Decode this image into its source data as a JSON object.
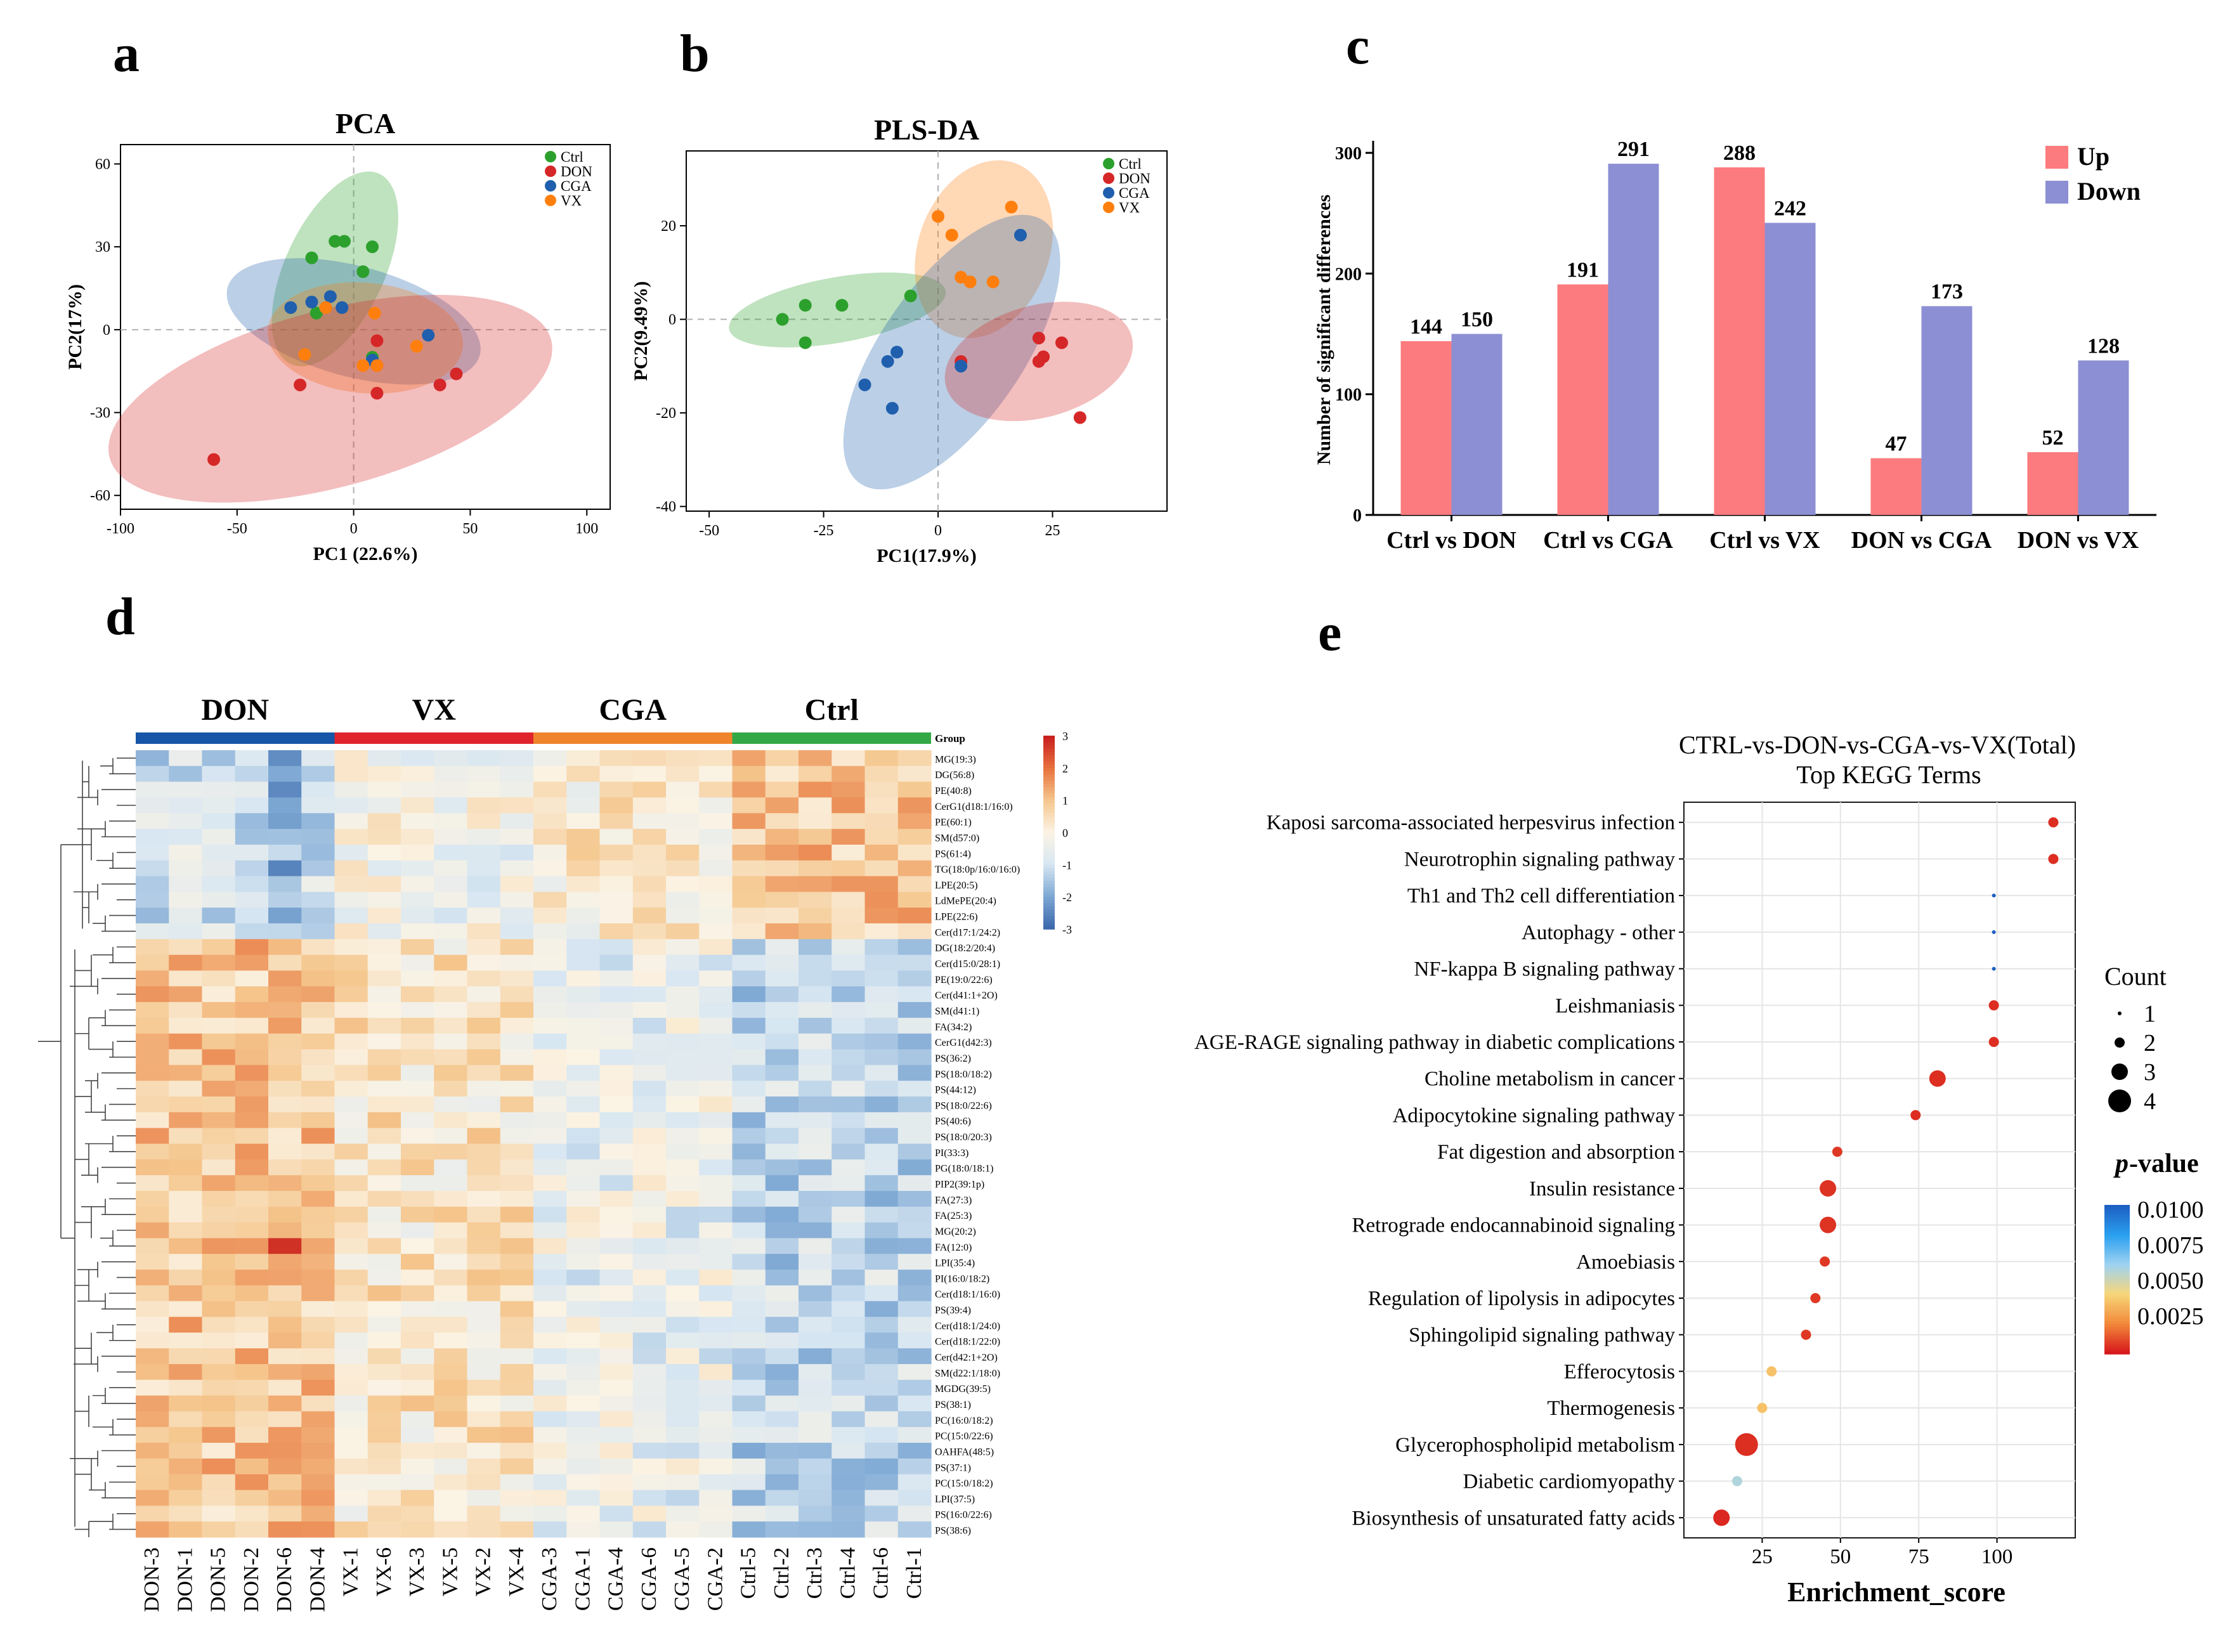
{
  "panel_letters": [
    "a",
    "b",
    "c",
    "d",
    "e"
  ],
  "chart_data": [
    {
      "id": "a",
      "type": "scatter",
      "title": "PCA",
      "xlabel": "PC1 (22.6%)",
      "ylabel": "PC2(17%)",
      "xlim": [
        -100,
        110
      ],
      "ylim": [
        -65,
        67
      ],
      "xticks": [
        -100,
        -50,
        0,
        50,
        100
      ],
      "yticks": [
        -60,
        -30,
        0,
        30,
        60
      ],
      "legend": [
        "Ctrl",
        "DON",
        "CGA",
        "VX"
      ],
      "series": [
        {
          "name": "Ctrl",
          "color": "#2ca02c",
          "points": [
            [
              -8,
              32
            ],
            [
              -4,
              32
            ],
            [
              -18,
              26
            ],
            [
              4,
              21
            ],
            [
              8,
              30
            ],
            [
              -16,
              6
            ],
            [
              8,
              -10
            ]
          ]
        },
        {
          "name": "DON",
          "color": "#d62728",
          "points": [
            [
              -60,
              -47
            ],
            [
              -23,
              -20
            ],
            [
              10,
              -23
            ],
            [
              37,
              -20
            ],
            [
              44,
              -16
            ],
            [
              10,
              -4
            ],
            [
              10,
              -13
            ]
          ]
        },
        {
          "name": "CGA",
          "color": "#1f5fad",
          "points": [
            [
              -27,
              8
            ],
            [
              -10,
              12
            ],
            [
              -5,
              8
            ],
            [
              -18,
              10
            ],
            [
              32,
              -2
            ],
            [
              8,
              -11
            ]
          ]
        },
        {
          "name": "VX",
          "color": "#ff7f0e",
          "points": [
            [
              -21,
              -9
            ],
            [
              9,
              6
            ],
            [
              4,
              -13
            ],
            [
              27,
              -6
            ],
            [
              -12,
              8
            ],
            [
              10,
              -13
            ]
          ]
        }
      ],
      "ellipses": [
        {
          "group": "Ctrl",
          "cx": -8,
          "cy": 22,
          "rx": 45,
          "ry": 18,
          "rotate": -65
        },
        {
          "group": "CGA",
          "cx": 0,
          "cy": 3,
          "rx": 56,
          "ry": 20,
          "rotate": 15
        },
        {
          "group": "VX",
          "cx": 5,
          "cy": -3,
          "rx": 42,
          "ry": 20,
          "rotate": 5
        },
        {
          "group": "DON",
          "cx": -10,
          "cy": -25,
          "rx": 98,
          "ry": 32,
          "rotate": -15
        }
      ]
    },
    {
      "id": "b",
      "type": "scatter",
      "title": "PLS-DA",
      "xlabel": "PC1(17.9%)",
      "ylabel": "PC2(9.49%)",
      "xlim": [
        -55,
        50
      ],
      "ylim": [
        -41,
        36
      ],
      "xticks": [
        -50,
        -25,
        0,
        25
      ],
      "yticks": [
        -40,
        -20,
        0,
        20
      ],
      "legend": [
        "Ctrl",
        "DON",
        "CGA",
        "VX"
      ],
      "series": [
        {
          "name": "Ctrl",
          "color": "#2ca02c",
          "points": [
            [
              -34,
              0
            ],
            [
              -29,
              3
            ],
            [
              -21,
              3
            ],
            [
              -29,
              -5
            ],
            [
              -6,
              5
            ]
          ]
        },
        {
          "name": "DON",
          "color": "#d62728",
          "points": [
            [
              5,
              -9
            ],
            [
              22,
              -4
            ],
            [
              22,
              -9
            ],
            [
              23,
              -8
            ],
            [
              27,
              -5
            ],
            [
              31,
              -21
            ]
          ]
        },
        {
          "name": "CGA",
          "color": "#1f5fad",
          "points": [
            [
              -16,
              -14
            ],
            [
              -11,
              -9
            ],
            [
              -9,
              -7
            ],
            [
              -10,
              -19
            ],
            [
              5,
              -10
            ],
            [
              18,
              18
            ]
          ]
        },
        {
          "name": "VX",
          "color": "#ff7f0e",
          "points": [
            [
              0,
              22
            ],
            [
              3,
              18
            ],
            [
              5,
              9
            ],
            [
              7,
              8
            ],
            [
              12,
              8
            ],
            [
              16,
              24
            ]
          ]
        }
      ],
      "ellipses": [
        {
          "group": "Ctrl",
          "cx": -22,
          "cy": 2,
          "rx": 24,
          "ry": 7,
          "rotate": -10
        },
        {
          "group": "VX",
          "cx": 10,
          "cy": 15,
          "rx": 20,
          "ry": 14,
          "rotate": -70
        },
        {
          "group": "CGA",
          "cx": 3,
          "cy": -7,
          "rx": 35,
          "ry": 15,
          "rotate": -55
        },
        {
          "group": "DON",
          "cx": 22,
          "cy": -9,
          "rx": 21,
          "ry": 12,
          "rotate": -15
        }
      ]
    },
    {
      "id": "c",
      "type": "bar",
      "ylabel": "Number of significant differences",
      "categories": [
        "Ctrl vs DON",
        "Ctrl vs CGA",
        "Ctrl vs VX",
        "DON vs CGA",
        "DON vs VX"
      ],
      "ylim": [
        0,
        310
      ],
      "yticks": [
        0,
        100,
        200,
        300
      ],
      "series": [
        {
          "name": "Up",
          "color": "#fc7b7e",
          "values": [
            144,
            191,
            288,
            47,
            52
          ]
        },
        {
          "name": "Down",
          "color": "#8c8fd3",
          "values": [
            150,
            291,
            242,
            173,
            128
          ]
        }
      ]
    },
    {
      "id": "d",
      "type": "heatmap",
      "groups": [
        {
          "name": "DON",
          "color": "#1755a8"
        },
        {
          "name": "VX",
          "color": "#e0242c"
        },
        {
          "name": "CGA",
          "color": "#f0842c"
        },
        {
          "name": "Ctrl",
          "color": "#33a847"
        }
      ],
      "group_label": "Group",
      "samples": [
        "DON-3",
        "DON-1",
        "DON-5",
        "DON-2",
        "DON-6",
        "DON-4",
        "VX-1",
        "VX-6",
        "VX-3",
        "VX-5",
        "VX-2",
        "VX-4",
        "CGA-3",
        "CGA-1",
        "CGA-4",
        "CGA-6",
        "CGA-5",
        "CGA-2",
        "Ctrl-5",
        "Ctrl-2",
        "Ctrl-3",
        "Ctrl-4",
        "Ctrl-6",
        "Ctrl-1"
      ],
      "rows": [
        "MG(19:3)",
        "DG(56:8)",
        "PE(40:8)",
        "CerG1(d18:1/16:0)",
        "PE(60:1)",
        "SM(d57:0)",
        "PS(61:4)",
        "TG(18:0p/16:0/16:0)",
        "LPE(20:5)",
        "LdMePE(20:4)",
        "LPE(22:6)",
        "Cer(d17:1/24:2)",
        "DG(18:2/20:4)",
        "Cer(d15:0/28:1)",
        "PE(19:0/22:6)",
        "Cer(d41:1+2O)",
        "SM(d41:1)",
        "FA(34:2)",
        "CerG1(d42:3)",
        "PS(36:2)",
        "PS(18:0/18:2)",
        "PS(44:12)",
        "PS(18:0/22:6)",
        "PS(40:6)",
        "PS(18:0/20:3)",
        "PI(33:3)",
        "PG(18:0/18:1)",
        "PIP2(39:1p)",
        "FA(27:3)",
        "FA(25:3)",
        "MG(20:2)",
        "FA(12:0)",
        "LPI(35:4)",
        "PI(16:0/18:2)",
        "Cer(d18:1/16:0)",
        "PS(39:4)",
        "Cer(d18:1/24:0)",
        "Cer(d18:1/22:0)",
        "Cer(d42:1+2O)",
        "SM(d22:1/18:0)",
        "MGDG(39:5)",
        "PS(38:1)",
        "PC(16:0/18:2)",
        "PC(15:0/22:6)",
        "OAHFA(48:5)",
        "PS(37:1)",
        "PC(15:0/18:2)",
        "LPI(37:5)",
        "PS(16:0/22:6)",
        "PS(38:6)"
      ],
      "colorbar": {
        "ticks": [
          3,
          2,
          1,
          0,
          -1,
          -2,
          -3
        ],
        "colors": [
          "#4a73b3",
          "#9fc3e0",
          "#f2f2f2",
          "#f7d9a8",
          "#d9302a"
        ]
      }
    },
    {
      "id": "e",
      "type": "scatter",
      "title": "CTRL-vs-DON-vs-CGA-vs-VX(Total)",
      "subtitle": "Top KEGG Terms",
      "xlabel": "Enrichment_score",
      "xlim": [
        0,
        125
      ],
      "xticks": [
        25,
        50,
        75,
        100
      ],
      "terms": [
        "Kaposi sarcoma-associated herpesvirus infection",
        "Neurotrophin signaling pathway",
        "Th1 and Th2 cell differentiation",
        "Autophagy - other",
        "NF-kappa B signaling pathway",
        "Leishmaniasis",
        "AGE-RAGE signaling pathway in diabetic complications",
        "Choline metabolism in cancer",
        "Adipocytokine signaling pathway",
        "Fat digestion and absorption",
        "Insulin resistance",
        "Retrograde endocannabinoid signaling",
        "Amoebiasis",
        "Regulation of lipolysis in adipocytes",
        "Sphingolipid signaling pathway",
        "Efferocytosis",
        "Thermogenesis",
        "Glycerophospholipid metabolism",
        "Diabetic cardiomyopathy",
        "Biosynthesis of unsaturated fatty acids"
      ],
      "enrichment": [
        118,
        118,
        99,
        99,
        99,
        99,
        99,
        81,
        74,
        49,
        46,
        46,
        45,
        42,
        39,
        28,
        25,
        20,
        17,
        12
      ],
      "count": [
        2,
        2,
        1,
        1,
        1,
        2,
        2,
        3,
        2,
        2,
        3,
        3,
        2,
        2,
        2,
        2,
        2,
        4,
        2,
        3
      ],
      "pvalue": [
        0.0004,
        0.0004,
        0.011,
        0.011,
        0.011,
        0.0004,
        0.0004,
        0.0004,
        0.0004,
        0.0006,
        0.0005,
        0.0005,
        0.0006,
        0.0006,
        0.0006,
        0.0038,
        0.0038,
        0.0004,
        0.0062,
        0.0003
      ],
      "size_legend": {
        "title": "Count",
        "values": [
          1,
          2,
          3,
          4
        ]
      },
      "color_legend": {
        "title_italic": "p",
        "title_rest": "-value",
        "ticks": [
          "0.0100",
          "0.0075",
          "0.0050",
          "0.0025"
        ]
      }
    }
  ]
}
